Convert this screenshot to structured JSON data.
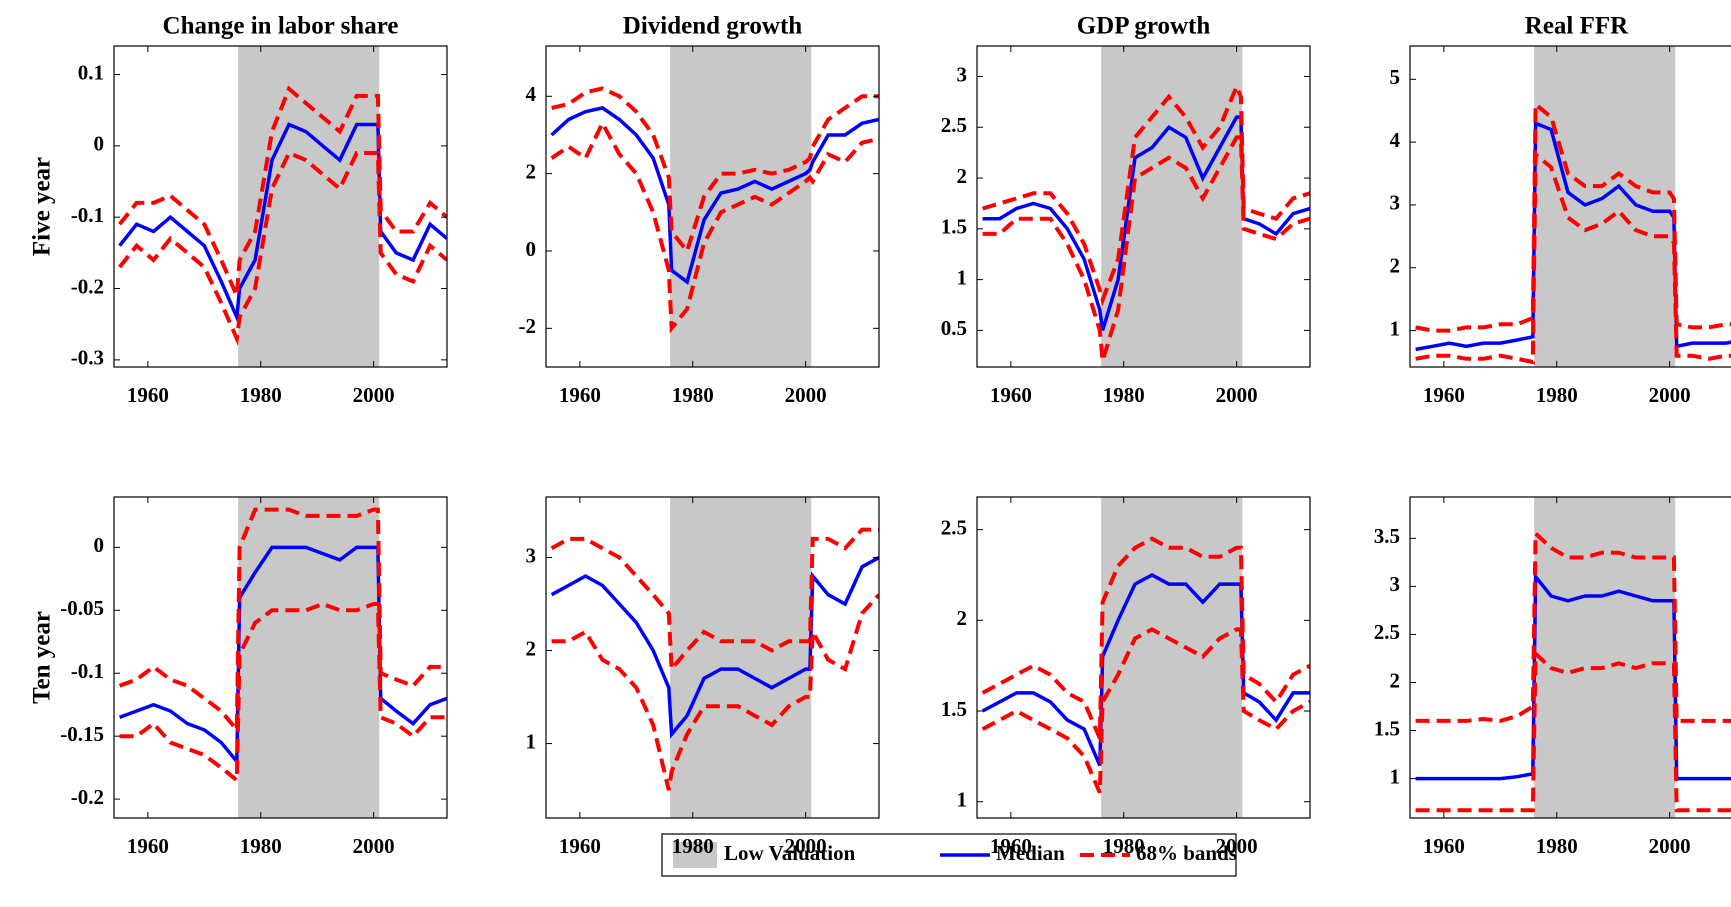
{
  "legend": [
    {
      "label": "Low Valuation",
      "color": "#c8c8c8"
    },
    {
      "label": "Median",
      "color": "#0000ff"
    },
    {
      "label": "68% bands",
      "color": "#ff0000"
    }
  ],
  "chart_data": [
    {
      "type": "line",
      "title": "Change in labor share",
      "ylabel": "Five year",
      "x": [
        1955,
        1958,
        1961,
        1964,
        1967,
        1970,
        1973,
        1975.75,
        1976.25,
        1979,
        1982,
        1985,
        1988,
        1991,
        1994,
        1997,
        2000,
        2000.75,
        2001.25,
        2004,
        2007,
        2010,
        2013
      ],
      "xlim": [
        1954,
        2013
      ],
      "xticks": [
        1960,
        1980,
        2000
      ],
      "ylim": [
        -0.31,
        0.14
      ],
      "yticks": [
        -0.3,
        -0.2,
        -0.1,
        0,
        0.1
      ],
      "shaded": [
        1976,
        2001
      ],
      "series": [
        {
          "color": "#0000ff",
          "dashed": false,
          "values": [
            -0.14,
            -0.11,
            -0.12,
            -0.1,
            -0.12,
            -0.14,
            -0.19,
            -0.24,
            -0.2,
            -0.16,
            -0.02,
            0.03,
            0.02,
            0.0,
            -0.02,
            0.03,
            0.03,
            0.03,
            -0.12,
            -0.15,
            -0.16,
            -0.11,
            -0.13
          ]
        },
        {
          "color": "#ff0000",
          "dashed": true,
          "values": [
            -0.11,
            -0.08,
            -0.08,
            -0.07,
            -0.09,
            -0.11,
            -0.16,
            -0.21,
            -0.16,
            -0.12,
            0.02,
            0.08,
            0.06,
            0.04,
            0.02,
            0.07,
            0.07,
            0.07,
            -0.09,
            -0.12,
            -0.12,
            -0.08,
            -0.1
          ]
        },
        {
          "color": "#ff0000",
          "dashed": true,
          "values": [
            -0.17,
            -0.14,
            -0.16,
            -0.13,
            -0.15,
            -0.17,
            -0.22,
            -0.27,
            -0.24,
            -0.2,
            -0.06,
            -0.01,
            -0.02,
            -0.04,
            -0.06,
            -0.01,
            -0.01,
            -0.01,
            -0.15,
            -0.18,
            -0.19,
            -0.14,
            -0.16
          ]
        }
      ]
    },
    {
      "type": "line",
      "title": "Dividend growth",
      "x": [
        1955,
        1958,
        1961,
        1964,
        1967,
        1970,
        1973,
        1975.75,
        1976.25,
        1979,
        1982,
        1985,
        1988,
        1991,
        1994,
        1997,
        2000,
        2000.75,
        2001.25,
        2004,
        2007,
        2010,
        2013
      ],
      "xlim": [
        1954,
        2013
      ],
      "xticks": [
        1960,
        1980,
        2000
      ],
      "ylim": [
        -3,
        5.3
      ],
      "yticks": [
        -2,
        0,
        2,
        4
      ],
      "shaded": [
        1976,
        2001
      ],
      "series": [
        {
          "color": "#0000ff",
          "dashed": false,
          "values": [
            3.0,
            3.4,
            3.6,
            3.7,
            3.4,
            3.0,
            2.4,
            1.2,
            -0.5,
            -0.8,
            0.8,
            1.5,
            1.6,
            1.8,
            1.6,
            1.8,
            2.0,
            2.1,
            2.3,
            3.0,
            3.0,
            3.3,
            3.4
          ]
        },
        {
          "color": "#ff0000",
          "dashed": true,
          "values": [
            3.7,
            3.8,
            4.1,
            4.2,
            4.0,
            3.6,
            3.0,
            1.9,
            0.5,
            0.0,
            1.4,
            2.0,
            2.0,
            2.1,
            2.0,
            2.1,
            2.3,
            2.4,
            2.7,
            3.4,
            3.7,
            4.0,
            4.0
          ]
        },
        {
          "color": "#ff0000",
          "dashed": true,
          "values": [
            2.4,
            2.7,
            2.4,
            3.3,
            2.5,
            2.0,
            1.0,
            -0.5,
            -2.0,
            -1.5,
            0.2,
            1.0,
            1.2,
            1.4,
            1.2,
            1.5,
            1.8,
            1.9,
            1.8,
            2.5,
            2.3,
            2.8,
            2.9
          ]
        }
      ]
    },
    {
      "type": "line",
      "title": "GDP growth",
      "x": [
        1955,
        1958,
        1961,
        1964,
        1967,
        1970,
        1973,
        1975.75,
        1976.25,
        1979,
        1982,
        1985,
        1988,
        1991,
        1994,
        1997,
        2000,
        2000.75,
        2001.25,
        2004,
        2007,
        2010,
        2013
      ],
      "xlim": [
        1954,
        2013
      ],
      "xticks": [
        1960,
        1980,
        2000
      ],
      "ylim": [
        0.14,
        3.3
      ],
      "yticks": [
        0.5,
        1,
        1.5,
        2,
        2.5,
        3
      ],
      "shaded": [
        1976,
        2001
      ],
      "series": [
        {
          "color": "#0000ff",
          "dashed": false,
          "values": [
            1.6,
            1.6,
            1.7,
            1.75,
            1.7,
            1.5,
            1.2,
            0.7,
            0.5,
            1.0,
            2.2,
            2.3,
            2.5,
            2.4,
            2.0,
            2.3,
            2.6,
            2.6,
            1.6,
            1.55,
            1.45,
            1.65,
            1.7
          ]
        },
        {
          "color": "#ff0000",
          "dashed": true,
          "values": [
            1.7,
            1.75,
            1.8,
            1.85,
            1.85,
            1.65,
            1.35,
            0.9,
            0.8,
            1.2,
            2.4,
            2.6,
            2.8,
            2.6,
            2.3,
            2.5,
            2.9,
            2.8,
            1.7,
            1.65,
            1.6,
            1.8,
            1.85
          ]
        },
        {
          "color": "#ff0000",
          "dashed": true,
          "values": [
            1.45,
            1.45,
            1.6,
            1.6,
            1.6,
            1.35,
            1.0,
            0.5,
            0.2,
            0.7,
            2.0,
            2.1,
            2.2,
            2.1,
            1.8,
            2.1,
            2.4,
            2.4,
            1.5,
            1.45,
            1.4,
            1.55,
            1.6
          ]
        }
      ]
    },
    {
      "type": "line",
      "title": "Real FFR",
      "x": [
        1955,
        1958,
        1961,
        1964,
        1967,
        1970,
        1973,
        1975.75,
        1976.25,
        1979,
        1982,
        1985,
        1988,
        1991,
        1994,
        1997,
        2000,
        2000.75,
        2001.25,
        2004,
        2007,
        2010,
        2013
      ],
      "xlim": [
        1954,
        2013
      ],
      "xticks": [
        1960,
        1980,
        2000
      ],
      "ylim": [
        0.42,
        5.53
      ],
      "yticks": [
        1,
        2,
        3,
        4,
        5
      ],
      "shaded": [
        1976,
        2001
      ],
      "series": [
        {
          "color": "#0000ff",
          "dashed": false,
          "values": [
            0.7,
            0.75,
            0.8,
            0.75,
            0.8,
            0.8,
            0.85,
            0.9,
            4.3,
            4.2,
            3.2,
            3.0,
            3.1,
            3.3,
            3.0,
            2.9,
            2.9,
            2.8,
            0.75,
            0.8,
            0.8,
            0.8,
            0.85
          ]
        },
        {
          "color": "#ff0000",
          "dashed": true,
          "values": [
            1.05,
            1.0,
            1.0,
            1.05,
            1.05,
            1.1,
            1.1,
            1.2,
            4.6,
            4.4,
            3.5,
            3.3,
            3.3,
            3.5,
            3.3,
            3.2,
            3.2,
            3.1,
            1.1,
            1.05,
            1.05,
            1.1,
            1.1
          ]
        },
        {
          "color": "#ff0000",
          "dashed": true,
          "values": [
            0.55,
            0.6,
            0.6,
            0.55,
            0.55,
            0.6,
            0.55,
            0.5,
            3.8,
            3.6,
            2.8,
            2.6,
            2.7,
            2.9,
            2.6,
            2.5,
            2.5,
            2.4,
            0.6,
            0.6,
            0.55,
            0.6,
            0.6
          ]
        }
      ]
    },
    {
      "type": "line",
      "ylabel": "Ten year",
      "x": [
        1955,
        1958,
        1961,
        1964,
        1967,
        1970,
        1973,
        1975.75,
        1976.25,
        1979,
        1982,
        1985,
        1988,
        1991,
        1994,
        1997,
        2000,
        2000.75,
        2001.25,
        2004,
        2007,
        2010,
        2013
      ],
      "xlim": [
        1954,
        2013
      ],
      "xticks": [
        1960,
        1980,
        2000
      ],
      "ylim": [
        -0.215,
        0.04
      ],
      "yticks": [
        -0.2,
        -0.15,
        -0.1,
        -0.05,
        0
      ],
      "shaded": [
        1976,
        2001
      ],
      "series": [
        {
          "color": "#0000ff",
          "dashed": false,
          "values": [
            -0.135,
            -0.13,
            -0.125,
            -0.13,
            -0.14,
            -0.145,
            -0.155,
            -0.17,
            -0.04,
            -0.02,
            0.0,
            0.0,
            0.0,
            -0.005,
            -0.01,
            0.0,
            0.0,
            0.0,
            -0.12,
            -0.13,
            -0.14,
            -0.125,
            -0.12
          ]
        },
        {
          "color": "#ff0000",
          "dashed": true,
          "values": [
            -0.11,
            -0.105,
            -0.095,
            -0.105,
            -0.11,
            -0.12,
            -0.13,
            -0.145,
            0.0,
            0.03,
            0.03,
            0.03,
            0.025,
            0.025,
            0.025,
            0.025,
            0.03,
            0.03,
            -0.1,
            -0.105,
            -0.11,
            -0.095,
            -0.095
          ]
        },
        {
          "color": "#ff0000",
          "dashed": true,
          "values": [
            -0.15,
            -0.15,
            -0.14,
            -0.155,
            -0.16,
            -0.165,
            -0.175,
            -0.185,
            -0.085,
            -0.06,
            -0.05,
            -0.05,
            -0.05,
            -0.045,
            -0.05,
            -0.05,
            -0.045,
            -0.045,
            -0.135,
            -0.14,
            -0.15,
            -0.135,
            -0.135
          ]
        }
      ]
    },
    {
      "type": "line",
      "x": [
        1955,
        1958,
        1961,
        1964,
        1967,
        1970,
        1973,
        1975.75,
        1976.25,
        1979,
        1982,
        1985,
        1988,
        1991,
        1994,
        1997,
        2000,
        2000.75,
        2001.25,
        2004,
        2007,
        2010,
        2013
      ],
      "xlim": [
        1954,
        2013
      ],
      "xticks": [
        1960,
        1980,
        2000
      ],
      "ylim": [
        0.2,
        3.65
      ],
      "yticks": [
        1,
        2,
        3
      ],
      "shaded": [
        1976,
        2001
      ],
      "series": [
        {
          "color": "#0000ff",
          "dashed": false,
          "values": [
            2.6,
            2.7,
            2.8,
            2.7,
            2.5,
            2.3,
            2.0,
            1.6,
            1.1,
            1.3,
            1.7,
            1.8,
            1.8,
            1.7,
            1.6,
            1.7,
            1.8,
            1.8,
            2.8,
            2.6,
            2.5,
            2.9,
            3.0
          ]
        },
        {
          "color": "#ff0000",
          "dashed": true,
          "values": [
            3.1,
            3.2,
            3.2,
            3.1,
            3.0,
            2.8,
            2.6,
            2.4,
            1.8,
            2.0,
            2.2,
            2.1,
            2.1,
            2.1,
            2.0,
            2.1,
            2.1,
            2.1,
            3.2,
            3.2,
            3.1,
            3.3,
            3.3
          ]
        },
        {
          "color": "#ff0000",
          "dashed": true,
          "values": [
            2.1,
            2.1,
            2.2,
            1.9,
            1.8,
            1.6,
            1.2,
            0.5,
            0.7,
            1.1,
            1.4,
            1.4,
            1.4,
            1.3,
            1.2,
            1.4,
            1.5,
            1.5,
            2.2,
            1.9,
            1.8,
            2.4,
            2.6
          ]
        }
      ]
    },
    {
      "type": "line",
      "x": [
        1955,
        1958,
        1961,
        1964,
        1967,
        1970,
        1973,
        1975.75,
        1976.25,
        1979,
        1982,
        1985,
        1988,
        1991,
        1994,
        1997,
        2000,
        2000.75,
        2001.25,
        2004,
        2007,
        2010,
        2013
      ],
      "xlim": [
        1954,
        2013
      ],
      "xticks": [
        1960,
        1980,
        2000
      ],
      "ylim": [
        0.91,
        2.68
      ],
      "yticks": [
        1,
        1.5,
        2,
        2.5
      ],
      "shaded": [
        1976,
        2001
      ],
      "series": [
        {
          "color": "#0000ff",
          "dashed": false,
          "values": [
            1.5,
            1.55,
            1.6,
            1.6,
            1.55,
            1.45,
            1.4,
            1.2,
            1.8,
            2.0,
            2.2,
            2.25,
            2.2,
            2.2,
            2.1,
            2.2,
            2.2,
            2.2,
            1.6,
            1.55,
            1.45,
            1.6,
            1.6
          ]
        },
        {
          "color": "#ff0000",
          "dashed": true,
          "values": [
            1.6,
            1.65,
            1.7,
            1.75,
            1.7,
            1.6,
            1.55,
            1.35,
            2.1,
            2.3,
            2.4,
            2.45,
            2.4,
            2.4,
            2.35,
            2.35,
            2.4,
            2.4,
            1.7,
            1.65,
            1.55,
            1.7,
            1.75
          ]
        },
        {
          "color": "#ff0000",
          "dashed": true,
          "values": [
            1.4,
            1.45,
            1.5,
            1.45,
            1.4,
            1.35,
            1.25,
            1.05,
            1.55,
            1.7,
            1.9,
            1.95,
            1.9,
            1.85,
            1.8,
            1.9,
            1.95,
            1.95,
            1.5,
            1.45,
            1.4,
            1.5,
            1.55
          ]
        }
      ]
    },
    {
      "type": "line",
      "x": [
        1955,
        1958,
        1961,
        1964,
        1967,
        1970,
        1973,
        1975.75,
        1976.25,
        1979,
        1982,
        1985,
        1988,
        1991,
        1994,
        1997,
        2000,
        2000.75,
        2001.25,
        2004,
        2007,
        2010,
        2013
      ],
      "xlim": [
        1954,
        2013
      ],
      "xticks": [
        1960,
        1980,
        2000
      ],
      "ylim": [
        0.59,
        3.93
      ],
      "yticks": [
        1,
        1.5,
        2,
        2.5,
        3,
        3.5
      ],
      "shaded": [
        1976,
        2001
      ],
      "series": [
        {
          "color": "#0000ff",
          "dashed": false,
          "values": [
            1.0,
            1.0,
            1.0,
            1.0,
            1.0,
            1.0,
            1.02,
            1.05,
            3.1,
            2.9,
            2.85,
            2.9,
            2.9,
            2.95,
            2.9,
            2.85,
            2.85,
            2.85,
            1.0,
            1.0,
            1.0,
            1.0,
            1.0
          ]
        },
        {
          "color": "#ff0000",
          "dashed": true,
          "values": [
            1.6,
            1.6,
            1.6,
            1.6,
            1.62,
            1.6,
            1.65,
            1.75,
            3.55,
            3.4,
            3.3,
            3.3,
            3.35,
            3.35,
            3.3,
            3.3,
            3.3,
            3.3,
            1.6,
            1.6,
            1.6,
            1.6,
            1.6
          ]
        },
        {
          "color": "#ff0000",
          "dashed": true,
          "values": [
            0.67,
            0.67,
            0.67,
            0.67,
            0.67,
            0.67,
            0.67,
            0.67,
            2.3,
            2.15,
            2.1,
            2.15,
            2.15,
            2.2,
            2.15,
            2.2,
            2.2,
            2.2,
            0.67,
            0.67,
            0.67,
            0.67,
            0.67
          ]
        }
      ]
    }
  ]
}
